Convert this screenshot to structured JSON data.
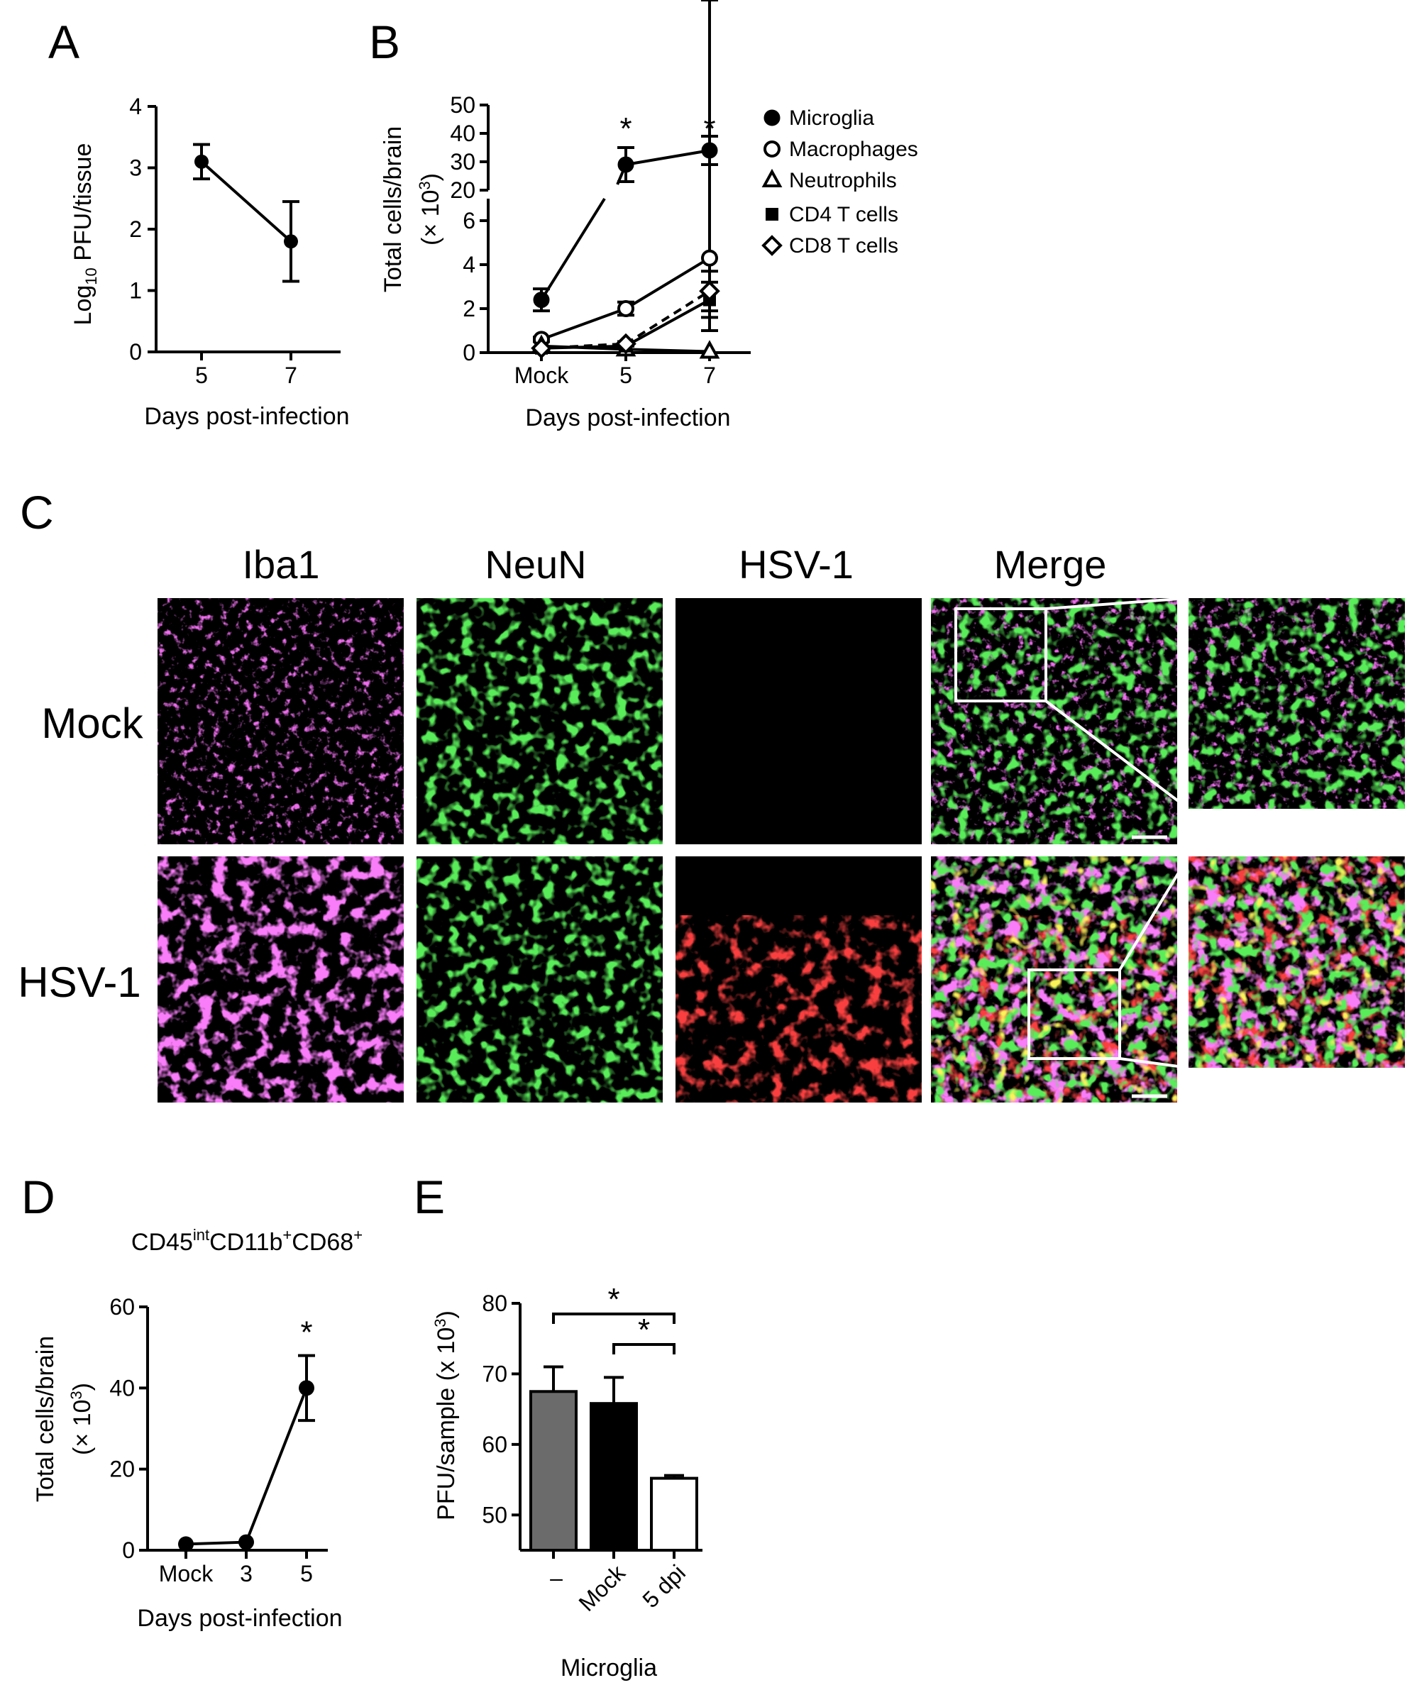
{
  "panels": {
    "A": {
      "letter": "A"
    },
    "B": {
      "letter": "B"
    },
    "C": {
      "letter": "C"
    },
    "D": {
      "letter": "D"
    },
    "E": {
      "letter": "E"
    }
  },
  "chart_data": [
    {
      "id": "A",
      "type": "line",
      "xlabel": "Days post-infection",
      "ylabel": "Log10 PFU/tissue",
      "ylabel_main": "Log",
      "ylabel_sub": "10",
      "ylabel_rest": " PFU/tissue",
      "categories": [
        "5",
        "7"
      ],
      "ylim": [
        0,
        4
      ],
      "yticks": [
        "0",
        "1",
        "2",
        "3",
        "4"
      ],
      "series": [
        {
          "values": [
            3.1,
            1.8
          ],
          "err": [
            0.28,
            0.65
          ]
        }
      ]
    },
    {
      "id": "B",
      "type": "line",
      "xlabel": "Days post-infection",
      "ylabel_line1": "Total cells/brain",
      "ylabel_line2_pre": "(× 10",
      "ylabel_line2_sup": "3",
      "ylabel_line2_post": ")",
      "categories": [
        "Mock",
        "5",
        "7"
      ],
      "axis_break": true,
      "lower_ylim": [
        0,
        7
      ],
      "lower_yticks": [
        "0",
        "2",
        "4",
        "6"
      ],
      "upper_ylim": [
        20,
        50
      ],
      "upper_yticks": [
        "20",
        "30",
        "40",
        "50"
      ],
      "significance": [
        "",
        "*",
        "*"
      ],
      "series": [
        {
          "name": "Microglia",
          "marker": "filled-circle",
          "dashed": false,
          "values": [
            2.4,
            29,
            34
          ],
          "err": [
            0.5,
            6,
            5
          ]
        },
        {
          "name": "Macrophages",
          "marker": "open-circle",
          "dashed": false,
          "values": [
            0.6,
            2.0,
            4.3
          ],
          "err": [
            0.1,
            0.3,
            3.3
          ]
        },
        {
          "name": "Neutrophils",
          "marker": "open-triangle",
          "dashed": false,
          "values": [
            0.3,
            0.15,
            0.05
          ],
          "err": [
            0.05,
            0.05,
            0.05
          ]
        },
        {
          "name": "CD4 T cells",
          "marker": "filled-square",
          "dashed": false,
          "values": [
            0.2,
            0.3,
            2.4
          ],
          "err": [
            0.05,
            0.05,
            0.8
          ]
        },
        {
          "name": "CD8 T cells",
          "marker": "open-diamond",
          "dashed": true,
          "values": [
            0.2,
            0.4,
            2.8
          ],
          "err": [
            0.05,
            0.1,
            0.9
          ]
        }
      ]
    },
    {
      "id": "D",
      "type": "line",
      "title_parts": [
        "CD45",
        "int",
        "CD11b",
        "+",
        "CD68",
        "+"
      ],
      "xlabel": "Days post-infection",
      "ylabel_line1": "Total cells/brain",
      "ylabel_line2_pre": "(× 10",
      "ylabel_line2_sup": "3",
      "ylabel_line2_post": ")",
      "categories": [
        "Mock",
        "3",
        "5"
      ],
      "ylim": [
        0,
        60
      ],
      "yticks": [
        "0",
        "20",
        "40",
        "60"
      ],
      "significance": [
        "",
        "",
        "*"
      ],
      "series": [
        {
          "values": [
            1.5,
            2,
            40
          ],
          "err": [
            0.5,
            0.4,
            8
          ]
        }
      ]
    },
    {
      "id": "E",
      "type": "bar",
      "xlabel": "Microglia",
      "ylabel_pre": "PFU/sample (x 10",
      "ylabel_sup": "3",
      "ylabel_post": ")",
      "categories": [
        "–",
        "Mock",
        "5 dpi"
      ],
      "bar_colors": [
        "#6b6b6b",
        "#000000",
        "#ffffff"
      ],
      "ylim": [
        45,
        80
      ],
      "yticks": [
        "50",
        "60",
        "70",
        "80"
      ],
      "values": [
        67.5,
        65.8,
        55.2
      ],
      "err": [
        3.5,
        3.7,
        0.4
      ],
      "brackets": [
        {
          "from": 0,
          "to": 2,
          "label": "*"
        },
        {
          "from": 1,
          "to": 2,
          "label": "*"
        }
      ]
    }
  ],
  "panel_c": {
    "columns": [
      "Iba1",
      "NeuN",
      "HSV-1",
      "Merge"
    ],
    "rows": [
      "Mock",
      "HSV-1"
    ]
  }
}
